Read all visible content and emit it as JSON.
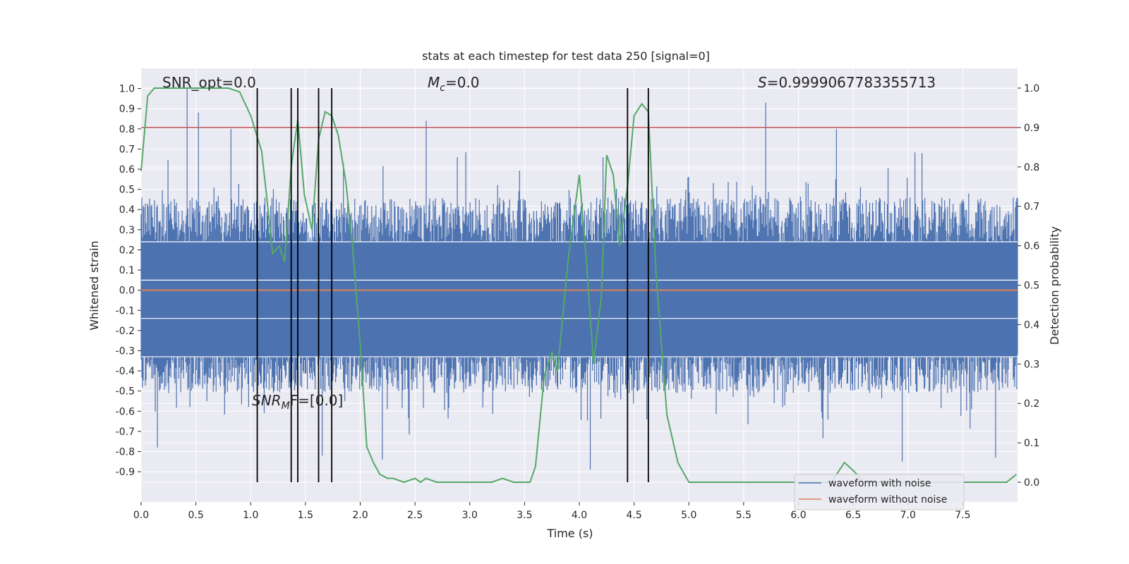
{
  "chart_data": {
    "type": "line",
    "title": "stats at each timestep for test data 250 [signal=0]",
    "xlabel": "Time (s)",
    "ylabel": "Whitened strain",
    "y2label": "Detection probability",
    "xlim": [
      0,
      8
    ],
    "ylim": [
      -1.05,
      1.1
    ],
    "y2lim": [
      -0.05,
      1.05
    ],
    "x_ticks": [
      "0.0",
      "0.5",
      "1.0",
      "1.5",
      "2.0",
      "2.5",
      "3.0",
      "3.5",
      "4.0",
      "4.5",
      "5.0",
      "5.5",
      "6.0",
      "6.5",
      "7.0",
      "7.5"
    ],
    "y_ticks": [
      "1.0",
      "0.9",
      "0.8",
      "0.7",
      "0.6",
      "0.5",
      "0.4",
      "0.3",
      "0.2",
      "0.1",
      "0.0",
      "-0.1",
      "-0.2",
      "-0.3",
      "-0.4",
      "-0.5",
      "-0.6",
      "-0.7",
      "-0.8",
      "-0.9"
    ],
    "y2_ticks": [
      "1.0",
      "0.9",
      "0.8",
      "0.7",
      "0.6",
      "0.5",
      "0.4",
      "0.3",
      "0.2",
      "0.1",
      "0.0"
    ],
    "grid": true,
    "annotations": {
      "snr_opt": "SNR_opt=0.0",
      "mc": "M",
      "mc_sub": "c",
      "mc_value": "=0.0",
      "s": "S",
      "s_value": "=0.9999067783355713",
      "snr_mf": "SNR",
      "snr_mf_sub": "M",
      "snr_mf_value": "F=[0.0]"
    },
    "noise_envelope": {
      "typical_max": 0.45,
      "typical_min": -0.5,
      "spikes": [
        {
          "x": 0.42,
          "y": 1.0
        },
        {
          "x": 0.52,
          "y": 0.88
        },
        {
          "x": 0.82,
          "y": 0.8
        },
        {
          "x": 2.6,
          "y": 0.84
        },
        {
          "x": 5.7,
          "y": 0.93
        },
        {
          "x": 6.35,
          "y": 0.8
        },
        {
          "x": 0.15,
          "y": -0.78
        },
        {
          "x": 1.65,
          "y": -0.82
        },
        {
          "x": 2.2,
          "y": -0.84
        },
        {
          "x": 4.1,
          "y": -0.89
        },
        {
          "x": 6.95,
          "y": -0.85
        },
        {
          "x": 7.8,
          "y": -0.83
        }
      ]
    },
    "threshold": 0.9,
    "vertical_markers": [
      1.06,
      1.37,
      1.43,
      1.62,
      1.74,
      4.44,
      4.63
    ],
    "series": [
      {
        "name": "waveform with noise",
        "color": "#4c72b0",
        "description": "whitened strain noise, x from 0 to 8 s"
      },
      {
        "name": "waveform without noise",
        "color": "#dd8452",
        "x": [
          0,
          8
        ],
        "y": [
          0.0,
          0.0
        ]
      },
      {
        "color": "#55a868",
        "axis": "right",
        "x": [
          0.0,
          0.06,
          0.12,
          0.2,
          0.3,
          0.4,
          0.5,
          0.6,
          0.7,
          0.8,
          0.9,
          1.0,
          1.1,
          1.14,
          1.2,
          1.26,
          1.31,
          1.37,
          1.43,
          1.49,
          1.56,
          1.62,
          1.68,
          1.74,
          1.8,
          1.87,
          1.93,
          2.0,
          2.06,
          2.12,
          2.18,
          2.25,
          2.3,
          2.4,
          2.5,
          2.55,
          2.6,
          2.7,
          2.8,
          2.9,
          3.0,
          3.1,
          3.15,
          3.2,
          3.3,
          3.4,
          3.5,
          3.55,
          3.6,
          3.68,
          3.75,
          3.8,
          3.9,
          4.0,
          4.06,
          4.13,
          4.2,
          4.25,
          4.31,
          4.37,
          4.44,
          4.5,
          4.57,
          4.63,
          4.7,
          4.8,
          4.9,
          5.0,
          5.1,
          5.2,
          5.3,
          5.5,
          5.7,
          5.9,
          6.1,
          6.3,
          6.42,
          6.5,
          6.6,
          6.8,
          7.0,
          7.2,
          7.4,
          7.6,
          7.8,
          7.9,
          7.99
        ],
        "y": [
          0.79,
          0.98,
          1.0,
          1.0,
          1.0,
          1.0,
          1.0,
          1.0,
          1.0,
          1.0,
          0.99,
          0.93,
          0.84,
          0.74,
          0.58,
          0.6,
          0.56,
          0.8,
          0.92,
          0.73,
          0.64,
          0.87,
          0.94,
          0.93,
          0.88,
          0.76,
          0.6,
          0.35,
          0.09,
          0.05,
          0.02,
          0.01,
          0.01,
          0.0,
          0.01,
          0.0,
          0.01,
          0.0,
          0.0,
          0.0,
          0.0,
          0.0,
          0.0,
          0.0,
          0.01,
          0.0,
          0.0,
          0.0,
          0.04,
          0.27,
          0.33,
          0.28,
          0.57,
          0.78,
          0.58,
          0.3,
          0.47,
          0.83,
          0.78,
          0.6,
          0.75,
          0.93,
          0.96,
          0.94,
          0.53,
          0.17,
          0.05,
          0.0,
          0.0,
          0.0,
          0.0,
          0.0,
          0.0,
          0.0,
          0.0,
          0.0,
          0.05,
          0.03,
          0.0,
          0.0,
          0.0,
          0.0,
          0.0,
          0.0,
          0.0,
          0.0,
          0.02
        ]
      }
    ],
    "legend_placement": "bottom-right"
  }
}
